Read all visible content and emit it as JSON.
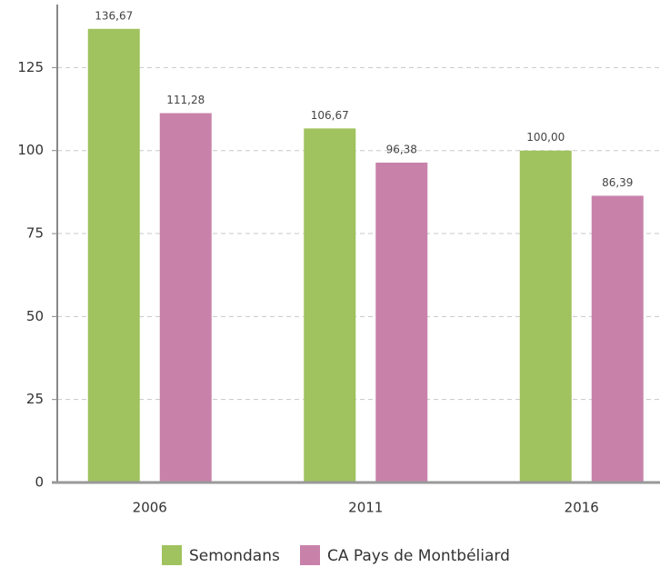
{
  "chart_data": {
    "type": "bar",
    "categories": [
      "2006",
      "2011",
      "2016"
    ],
    "series": [
      {
        "name": "Semondans",
        "color": "#a0c25f",
        "values": [
          136.67,
          106.67,
          100.0
        ],
        "value_labels": [
          "136,67",
          "106,67",
          "100,00"
        ]
      },
      {
        "name": "CA Pays de Montbéliard",
        "color": "#c882aa",
        "values": [
          111.28,
          96.38,
          86.39
        ],
        "value_labels": [
          "111,28",
          "96,38",
          "86,39"
        ]
      }
    ],
    "ylim": [
      0,
      144
    ],
    "yticks": [
      0,
      25,
      50,
      75,
      100,
      125
    ],
    "grid": true,
    "legend": "bottom"
  }
}
